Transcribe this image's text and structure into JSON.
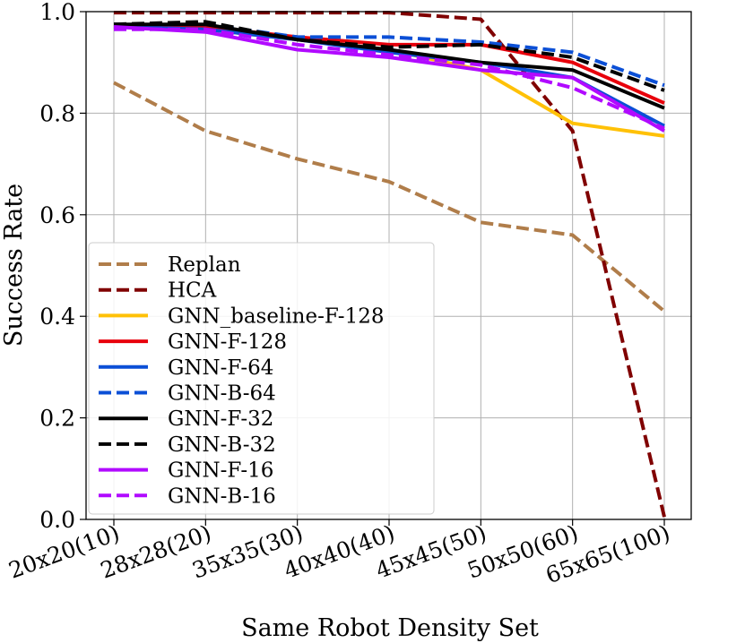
{
  "chart_data": {
    "type": "line",
    "title": "",
    "xlabel": "Same Robot Density Set",
    "ylabel": "Success Rate",
    "categories": [
      "20x20(10)",
      "28x28(20)",
      "35x35(30)",
      "40x40(40)",
      "45x45(50)",
      "50x50(60)",
      "65x65(100)"
    ],
    "ylim": [
      0,
      1
    ],
    "yticks": [
      "0.0",
      "0.2",
      "0.4",
      "0.6",
      "0.8",
      "1.0"
    ],
    "grid": true,
    "legend_position": "lower-left",
    "series": [
      {
        "name": "Replan",
        "color": "#b07d4a",
        "dashed": true,
        "values": [
          0.86,
          0.765,
          0.71,
          0.665,
          0.585,
          0.56,
          0.41
        ]
      },
      {
        "name": "HCA",
        "color": "#800000",
        "dashed": true,
        "values": [
          0.998,
          0.998,
          0.998,
          0.998,
          0.985,
          0.765,
          0.005
        ]
      },
      {
        "name": "GNN_baseline-F-128",
        "color": "#ffc107",
        "dashed": false,
        "values": [
          0.97,
          0.965,
          0.945,
          0.925,
          0.885,
          0.78,
          0.755
        ]
      },
      {
        "name": "GNN-F-128",
        "color": "#e8000b",
        "dashed": false,
        "values": [
          0.975,
          0.97,
          0.95,
          0.935,
          0.935,
          0.9,
          0.82
        ]
      },
      {
        "name": "GNN-F-64",
        "color": "#0b4fd6",
        "dashed": false,
        "values": [
          0.97,
          0.965,
          0.945,
          0.92,
          0.9,
          0.87,
          0.775
        ]
      },
      {
        "name": "GNN-B-64",
        "color": "#0b4fd6",
        "dashed": true,
        "values": [
          0.975,
          0.975,
          0.95,
          0.95,
          0.94,
          0.92,
          0.855
        ]
      },
      {
        "name": "GNN-F-32",
        "color": "#000000",
        "dashed": false,
        "values": [
          0.975,
          0.975,
          0.945,
          0.925,
          0.9,
          0.885,
          0.81
        ]
      },
      {
        "name": "GNN-B-32",
        "color": "#000000",
        "dashed": true,
        "values": [
          0.975,
          0.98,
          0.945,
          0.93,
          0.935,
          0.91,
          0.845
        ]
      },
      {
        "name": "GNN-F-16",
        "color": "#b10aff",
        "dashed": false,
        "values": [
          0.97,
          0.96,
          0.925,
          0.91,
          0.885,
          0.87,
          0.765
        ]
      },
      {
        "name": "GNN-B-16",
        "color": "#b10aff",
        "dashed": true,
        "values": [
          0.965,
          0.965,
          0.935,
          0.915,
          0.895,
          0.85,
          0.77
        ]
      }
    ]
  }
}
